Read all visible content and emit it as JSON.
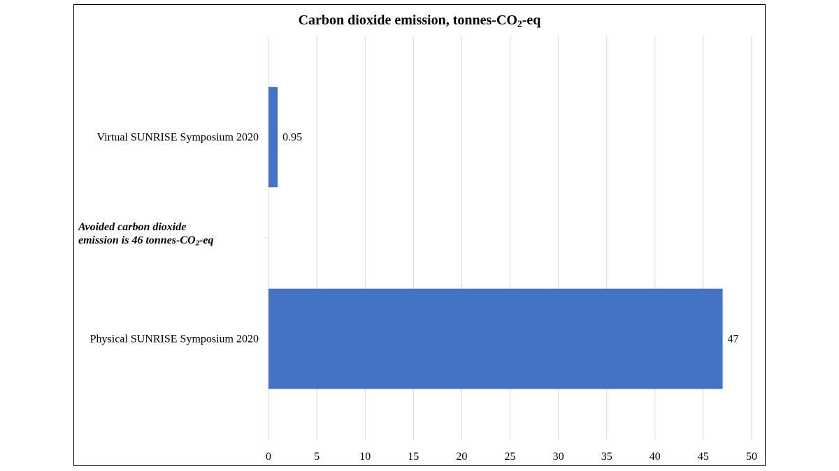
{
  "chart_data": {
    "type": "bar",
    "orientation": "horizontal",
    "title": {
      "text": "Carbon dioxide emission, tonnes-CO",
      "subscript": "2",
      "suffix": "-eq"
    },
    "categories": [
      "Virtual SUNRISE Symposium 2020",
      "Physical SUNRISE Symposium 2020"
    ],
    "values": [
      0.95,
      47
    ],
    "data_labels": [
      "0.95",
      "47"
    ],
    "xlabel": "",
    "ylabel": "",
    "xlim": [
      0,
      50
    ],
    "ticks": [
      0,
      5,
      10,
      15,
      20,
      25,
      30,
      35,
      40,
      45,
      50
    ],
    "grid": true,
    "legend": "none",
    "bar_color": "#4472C4",
    "gridline_color": "#D9D9D9",
    "annotation": {
      "line1": "Avoided carbon dioxide",
      "line2_prefix": "emission is 46 tonnes-CO",
      "line2_subscript": "2",
      "line2_suffix": "-eq"
    }
  }
}
